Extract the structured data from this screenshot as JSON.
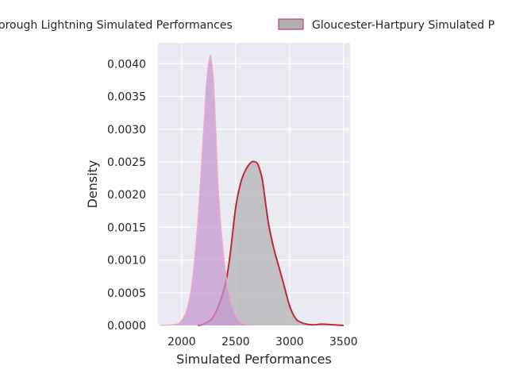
{
  "chart_data": {
    "type": "area",
    "title": "",
    "xlabel": "Simulated Performances",
    "ylabel": "Density",
    "xlim": [
      1780,
      3560
    ],
    "ylim": [
      0,
      0.00432
    ],
    "x_ticks": [
      2000,
      2500,
      3000,
      3500
    ],
    "x_tick_labels": [
      "2000",
      "2500",
      "3000",
      "3500"
    ],
    "y_ticks": [
      0,
      0.0005,
      0.001,
      0.0015,
      0.002,
      0.0025,
      0.003,
      0.0035,
      0.004
    ],
    "y_tick_labels": [
      "0.0000",
      "0.0005",
      "0.0010",
      "0.0015",
      "0.0020",
      "0.0025",
      "0.0030",
      "0.0035",
      "0.0040"
    ],
    "grid": true,
    "legend": {
      "placement": "top-center-outside",
      "columns": 2
    },
    "series": [
      {
        "name": "Loughborough Lightning Simulated Performances",
        "legend_label": "orough Lightning Simulated Performances",
        "fill_color": "#c496cf",
        "line_color": "#f4a7c7",
        "x": [
          1800,
          1950,
          2000,
          2050,
          2100,
          2150,
          2200,
          2230,
          2260,
          2275,
          2300,
          2330,
          2350,
          2400,
          2450,
          2500,
          2550,
          2650
        ],
        "y": [
          0,
          2e-05,
          8e-05,
          0.00025,
          0.0007,
          0.0016,
          0.0029,
          0.0037,
          0.0041,
          0.00405,
          0.0036,
          0.0024,
          0.0018,
          0.0009,
          0.0004,
          0.00016,
          5e-05,
          0
        ]
      },
      {
        "name": "Gloucester-Hartpury Simulated Performances",
        "legend_label": "Gloucester-Hartpury Simulated P",
        "fill_color": "#b0b0b3",
        "line_color": "#c0283c",
        "x": [
          2150,
          2200,
          2300,
          2400,
          2450,
          2500,
          2550,
          2600,
          2650,
          2680,
          2700,
          2720,
          2750,
          2800,
          2850,
          2900,
          2950,
          3000,
          3050,
          3100,
          3200,
          3300,
          3400,
          3500
        ],
        "y": [
          0,
          2e-05,
          0.00015,
          0.0006,
          0.0011,
          0.0018,
          0.0022,
          0.0024,
          0.0025,
          0.0025,
          0.00248,
          0.0024,
          0.0022,
          0.0016,
          0.0012,
          0.0009,
          0.0006,
          0.0003,
          0.00012,
          5e-05,
          1e-05,
          2e-05,
          1e-05,
          0
        ]
      }
    ]
  }
}
